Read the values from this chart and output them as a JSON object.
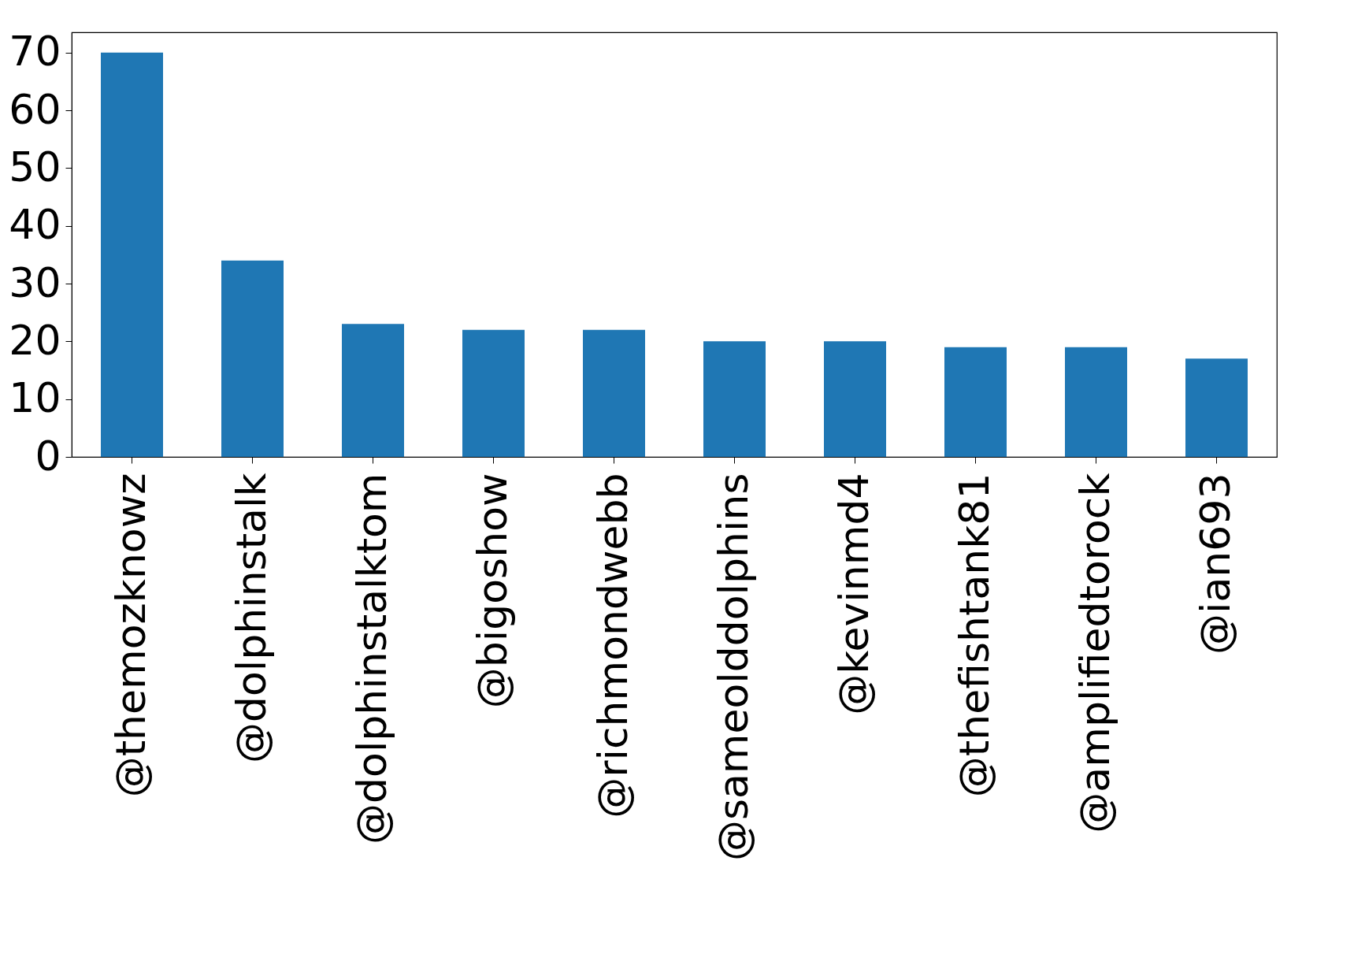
{
  "chart_data": {
    "type": "bar",
    "categories": [
      "@themozknowz",
      "@dolphinstalk",
      "@dolphinstalktom",
      "@bigoshow",
      "@richmondwebb",
      "@sameolddolphins",
      "@kevinmd4",
      "@thefishtank81",
      "@amplifiedtorock",
      "@ian693"
    ],
    "values": [
      70,
      34,
      23,
      22,
      22,
      20,
      20,
      19,
      19,
      17
    ],
    "color": "#1f77b4",
    "ylim": [
      0,
      73.5
    ],
    "yticks": [
      0,
      10,
      20,
      30,
      40,
      50,
      60,
      70
    ],
    "grid": false
  }
}
